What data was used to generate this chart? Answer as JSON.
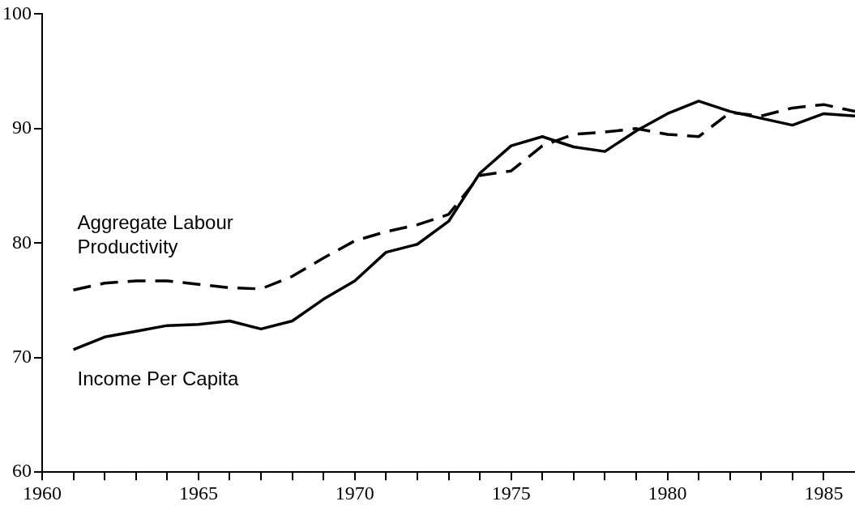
{
  "chart_data": {
    "type": "line",
    "x": [
      1961,
      1962,
      1963,
      1964,
      1965,
      1966,
      1967,
      1968,
      1969,
      1970,
      1971,
      1972,
      1973,
      1974,
      1975,
      1976,
      1977,
      1978,
      1979,
      1980,
      1981,
      1982,
      1983,
      1984,
      1985,
      1986
    ],
    "series": [
      {
        "name": "Aggregate Labour Productivity",
        "color": "#000000",
        "line_style": "dashed",
        "values": [
          75.9,
          76.5,
          76.7,
          76.7,
          76.4,
          76.1,
          76.0,
          77.1,
          78.7,
          80.2,
          81.0,
          81.6,
          82.5,
          85.9,
          86.3,
          88.5,
          89.5,
          89.7,
          90.0,
          89.5,
          89.3,
          91.4,
          91.1,
          91.8,
          92.1,
          91.5
        ]
      },
      {
        "name": "Income Per Capita",
        "color": "#000000",
        "line_style": "solid",
        "values": [
          70.7,
          71.8,
          72.3,
          72.8,
          72.9,
          73.2,
          72.5,
          73.2,
          75.1,
          76.7,
          79.2,
          79.9,
          81.9,
          86.1,
          88.5,
          89.3,
          88.4,
          88.0,
          89.8,
          91.3,
          92.4,
          91.5,
          90.9,
          90.3,
          91.3,
          91.1
        ]
      }
    ],
    "xlim": [
      1960,
      1986
    ],
    "xticks": [
      1960,
      {
        "value": 1961,
        "label": null
      },
      {
        "value": 1962,
        "label": null
      },
      {
        "value": 1963,
        "label": null
      },
      {
        "value": 1964,
        "label": null
      },
      1965,
      {
        "value": 1966,
        "label": null
      },
      {
        "value": 1967,
        "label": null
      },
      {
        "value": 1968,
        "label": null
      },
      {
        "value": 1969,
        "label": null
      },
      1970,
      {
        "value": 1971,
        "label": null
      },
      {
        "value": 1972,
        "label": null
      },
      {
        "value": 1973,
        "label": null
      },
      {
        "value": 1974,
        "label": null
      },
      1975,
      {
        "value": 1976,
        "label": null
      },
      {
        "value": 1977,
        "label": null
      },
      {
        "value": 1978,
        "label": null
      },
      {
        "value": 1979,
        "label": null
      },
      1980,
      {
        "value": 1981,
        "label": null
      },
      {
        "value": 1982,
        "label": null
      },
      {
        "value": 1983,
        "label": null
      },
      {
        "value": 1984,
        "label": null
      },
      1985
    ],
    "ylim": [
      60,
      100
    ],
    "yticks": [
      60,
      70,
      80,
      90,
      100
    ],
    "grid": false,
    "legend": false,
    "marker": "none"
  }
}
